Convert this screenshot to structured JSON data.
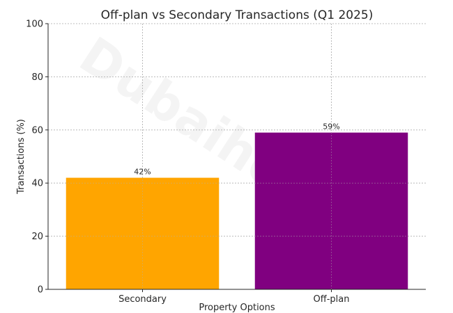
{
  "chart_data": {
    "type": "bar",
    "title": "Off-plan vs Secondary Transactions (Q1 2025)",
    "xlabel": "Property Options",
    "ylabel": "Transactions (%)",
    "categories": [
      "Secondary",
      "Off-plan"
    ],
    "values": [
      42,
      59
    ],
    "value_labels": [
      "42%",
      "59%"
    ],
    "colors": [
      "#FFA500",
      "#800080"
    ],
    "ylim": [
      0,
      100
    ],
    "yticks": [
      0,
      20,
      40,
      60,
      80,
      100
    ],
    "grid": true,
    "watermark": "Dubaihomes"
  }
}
